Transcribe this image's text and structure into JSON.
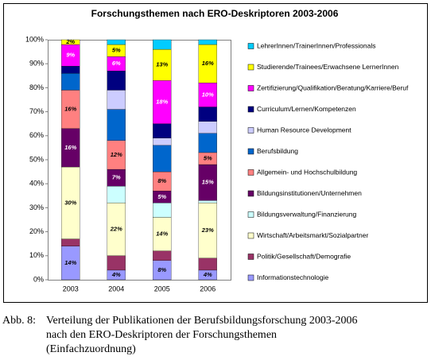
{
  "chart_data": {
    "type": "stacked-bar",
    "title": "Forschungsthemen nach ERO-Deskriptoren 2003-2006",
    "categories": [
      "2003",
      "2004",
      "2005",
      "2006"
    ],
    "ylim": [
      0,
      100
    ],
    "yticks": [
      {
        "value": 0,
        "label": "0%"
      },
      {
        "value": 10,
        "label": "10%"
      },
      {
        "value": 20,
        "label": "20%"
      },
      {
        "value": 30,
        "label": "30%"
      },
      {
        "value": 40,
        "label": "40%"
      },
      {
        "value": 50,
        "label": "50%"
      },
      {
        "value": 60,
        "label": "60%"
      },
      {
        "value": 70,
        "label": "70%"
      },
      {
        "value": 80,
        "label": "80%"
      },
      {
        "value": 90,
        "label": "90%"
      },
      {
        "value": 100,
        "label": "100%"
      }
    ],
    "legend_position": "right",
    "series": [
      {
        "name": "Informationstechnologie",
        "color": "#9999ff",
        "values": [
          14,
          4,
          8,
          4
        ],
        "value_labels": [
          "14%",
          "4%",
          "8%",
          "4%"
        ]
      },
      {
        "name": "Politik/Gesellschaft/Demografie",
        "color": "#993366",
        "values": [
          3,
          6,
          4,
          5
        ],
        "value_labels": [
          null,
          null,
          null,
          null
        ]
      },
      {
        "name": "Wirtschaft/Arbeitsmarkt/Sozialpartner",
        "color": "#ffffcc",
        "values": [
          30,
          22,
          14,
          23
        ],
        "value_labels": [
          "30%",
          "22%",
          "14%",
          "23%"
        ]
      },
      {
        "name": "Bildungsverwaltung/Finanzierung",
        "color": "#ccffff",
        "values": [
          0,
          7,
          6,
          1
        ],
        "value_labels": [
          null,
          null,
          null,
          null
        ]
      },
      {
        "name": "Bildungsinstitutionen/Unternehmen",
        "color": "#660066",
        "values": [
          16,
          7,
          5,
          15
        ],
        "value_labels": [
          "16%",
          "7%",
          "5%",
          "15%"
        ]
      },
      {
        "name": "Allgemein- und Hochschulbildung",
        "color": "#ff8080",
        "values": [
          16,
          12,
          8,
          5
        ],
        "value_labels": [
          "16%",
          "12%",
          "8%",
          "5%"
        ]
      },
      {
        "name": "Berufsbildung",
        "color": "#0066cc",
        "values": [
          7,
          13,
          11,
          8
        ],
        "value_labels": [
          null,
          null,
          null,
          null
        ]
      },
      {
        "name": "Human Resource Development",
        "color": "#ccccff",
        "values": [
          0,
          8,
          3,
          5
        ],
        "value_labels": [
          null,
          null,
          null,
          null
        ]
      },
      {
        "name": "Curriculum/Lernen/Kompetenzen",
        "color": "#000080",
        "values": [
          3,
          8,
          6,
          6
        ],
        "value_labels": [
          null,
          null,
          null,
          null
        ]
      },
      {
        "name": "Zertifizierung/Qualifikation/Beratung/Karriere/Beruf",
        "color": "#ff00ff",
        "values": [
          9,
          6,
          18,
          10
        ],
        "value_labels": [
          "9%",
          "6%",
          "18%",
          "10%"
        ]
      },
      {
        "name": "Studierende/Trainees/Erwachsene LernerInnen",
        "color": "#ffff00",
        "values": [
          2,
          5,
          13,
          16
        ],
        "value_labels": [
          "2%",
          "5%",
          "13%",
          "16%"
        ]
      },
      {
        "name": "LehrerInnen/TrainerInnen/Professionals",
        "color": "#00ccff",
        "values": [
          0,
          2,
          4,
          2
        ],
        "value_labels": [
          null,
          null,
          null,
          null
        ]
      }
    ]
  },
  "caption": {
    "label": "Abb. 8:",
    "lines": [
      "Verteilung der Publikationen der Berufsbildungsforschung 2003-2006",
      "nach den ERO-Deskriptoren der Forschungsthemen",
      "(Einfachzuordnung)"
    ]
  }
}
